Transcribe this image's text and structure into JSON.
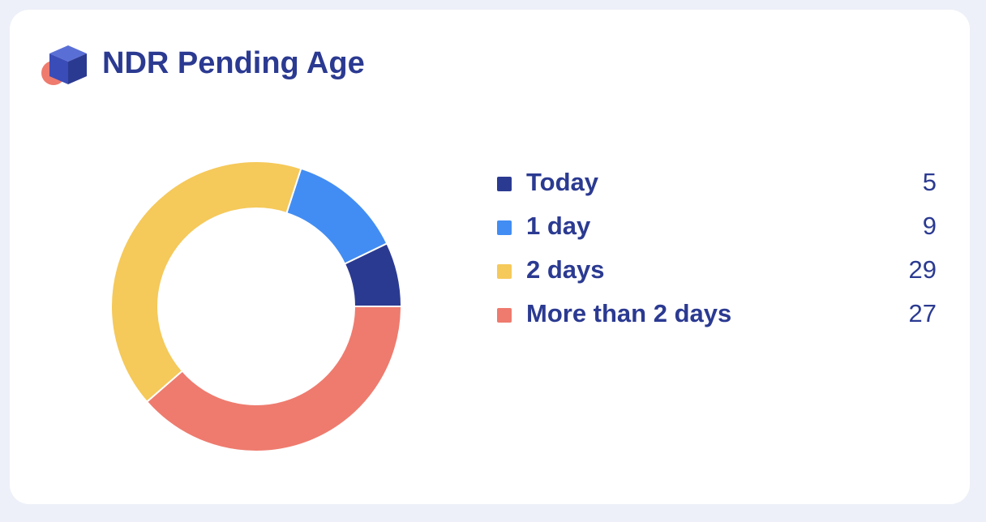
{
  "chart_data": {
    "type": "donut",
    "title": "NDR Pending Age",
    "categories": [
      "Today",
      "1 day",
      "2 days",
      "More than 2 days"
    ],
    "values": [
      5,
      9,
      29,
      27
    ],
    "colors": [
      "#2b3a91",
      "#428df3",
      "#f5c95a",
      "#ee7b6e"
    ]
  }
}
